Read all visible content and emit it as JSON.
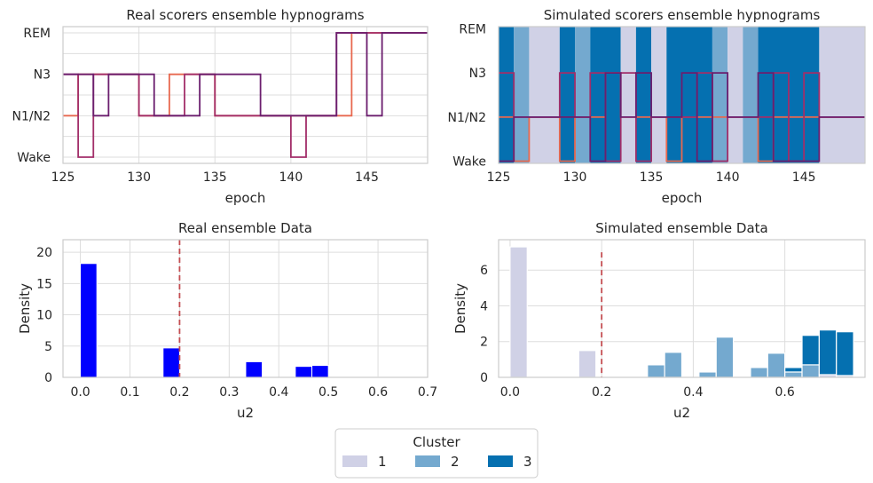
{
  "legend": {
    "title": "Cluster",
    "items": [
      {
        "label": "1",
        "color": "#d0d1e6"
      },
      {
        "label": "2",
        "color": "#74a9cf"
      },
      {
        "label": "3",
        "color": "#0570b0"
      }
    ]
  },
  "chart_data": [
    {
      "id": "real-hyp",
      "type": "line",
      "title": "Real scorers ensemble hypnograms",
      "xlabel": "epoch",
      "ylabel": "",
      "xlim": [
        125,
        149
      ],
      "x_ticks": [
        125,
        130,
        135,
        140,
        145
      ],
      "y_ticks": [
        0,
        1,
        2,
        3
      ],
      "y_tick_labels": [
        "Wake",
        "N1/N2",
        "N3",
        "REM"
      ],
      "ylim": [
        -0.15,
        3.15
      ],
      "grid": true,
      "series": [
        {
          "color": "#e8684f",
          "steps": [
            [
              125,
              1
            ],
            [
              126,
              2
            ],
            [
              127,
              2
            ],
            [
              128,
              2
            ],
            [
              130,
              1
            ],
            [
              132,
              2
            ],
            [
              135,
              1
            ],
            [
              140,
              1
            ],
            [
              141,
              1
            ],
            [
              144,
              3
            ],
            [
              149,
              3
            ]
          ]
        },
        {
          "color": "#a22e69",
          "steps": [
            [
              125,
              2
            ],
            [
              126,
              0
            ],
            [
              127,
              2
            ],
            [
              130,
              1
            ],
            [
              133,
              2
            ],
            [
              135,
              1
            ],
            [
              140,
              0
            ],
            [
              141,
              1
            ],
            [
              143,
              3
            ],
            [
              149,
              3
            ]
          ]
        },
        {
          "color": "#6b1e6e",
          "steps": [
            [
              125,
              2
            ],
            [
              126,
              2
            ],
            [
              127,
              1
            ],
            [
              128,
              2
            ],
            [
              131,
              1
            ],
            [
              134,
              2
            ],
            [
              138,
              1
            ],
            [
              143,
              3
            ],
            [
              145,
              1
            ],
            [
              146,
              3
            ],
            [
              149,
              3
            ]
          ]
        }
      ]
    },
    {
      "id": "sim-hyp",
      "type": "line",
      "title": "Simulated scorers ensemble hypnograms",
      "xlabel": "epoch",
      "ylabel": "",
      "xlim": [
        125,
        149
      ],
      "x_ticks": [
        125,
        130,
        135,
        140,
        145
      ],
      "y_ticks": [
        0,
        1,
        2,
        3
      ],
      "y_tick_labels": [
        "Wake",
        "N1/N2",
        "N3",
        "REM"
      ],
      "ylim": [
        -0.05,
        3.05
      ],
      "grid": false,
      "background_bands": [
        {
          "x0": 125,
          "x1": 126,
          "cluster": 3
        },
        {
          "x0": 126,
          "x1": 127,
          "cluster": 2
        },
        {
          "x0": 127,
          "x1": 129,
          "cluster": 1
        },
        {
          "x0": 129,
          "x1": 130,
          "cluster": 3
        },
        {
          "x0": 130,
          "x1": 131,
          "cluster": 2
        },
        {
          "x0": 131,
          "x1": 133,
          "cluster": 3
        },
        {
          "x0": 133,
          "x1": 134,
          "cluster": 1
        },
        {
          "x0": 134,
          "x1": 135,
          "cluster": 3
        },
        {
          "x0": 135,
          "x1": 136,
          "cluster": 1
        },
        {
          "x0": 136,
          "x1": 139,
          "cluster": 3
        },
        {
          "x0": 139,
          "x1": 140,
          "cluster": 2
        },
        {
          "x0": 140,
          "x1": 141,
          "cluster": 1
        },
        {
          "x0": 141,
          "x1": 142,
          "cluster": 2
        },
        {
          "x0": 142,
          "x1": 146,
          "cluster": 3
        },
        {
          "x0": 146,
          "x1": 149,
          "cluster": 1
        }
      ],
      "series": [
        {
          "color": "#e8684f",
          "steps": [
            [
              125,
              1
            ],
            [
              126,
              0
            ],
            [
              127,
              1
            ],
            [
              129,
              0
            ],
            [
              130,
              1
            ],
            [
              132,
              2
            ],
            [
              133,
              1
            ],
            [
              136,
              0
            ],
            [
              137,
              1
            ],
            [
              139,
              1
            ],
            [
              142,
              0
            ],
            [
              143,
              1
            ],
            [
              146,
              1
            ],
            [
              149,
              1
            ]
          ]
        },
        {
          "color": "#a22e69",
          "steps": [
            [
              125,
              2
            ],
            [
              126,
              1
            ],
            [
              127,
              1
            ],
            [
              129,
              2
            ],
            [
              130,
              1
            ],
            [
              131,
              2
            ],
            [
              132,
              0
            ],
            [
              133,
              2
            ],
            [
              134,
              0
            ],
            [
              135,
              1
            ],
            [
              138,
              2
            ],
            [
              139,
              0
            ],
            [
              140,
              1
            ],
            [
              143,
              2
            ],
            [
              144,
              0
            ],
            [
              145,
              2
            ],
            [
              146,
              1
            ],
            [
              149,
              1
            ]
          ]
        },
        {
          "color": "#6b1e6e",
          "steps": [
            [
              125,
              0
            ],
            [
              126,
              1
            ],
            [
              129,
              1
            ],
            [
              131,
              0
            ],
            [
              132,
              2
            ],
            [
              133,
              1
            ],
            [
              134,
              2
            ],
            [
              135,
              1
            ],
            [
              136,
              1
            ],
            [
              137,
              2
            ],
            [
              138,
              0
            ],
            [
              139,
              2
            ],
            [
              140,
              1
            ],
            [
              142,
              2
            ],
            [
              143,
              0
            ],
            [
              146,
              1
            ],
            [
              149,
              1
            ]
          ]
        }
      ]
    },
    {
      "id": "real-hist",
      "type": "bar",
      "title": "Real ensemble Data",
      "xlabel": "u2",
      "ylabel": "Density",
      "xlim": [
        -0.035,
        0.7
      ],
      "ylim": [
        0,
        22
      ],
      "x_ticks": [
        0.0,
        0.1,
        0.2,
        0.3,
        0.4,
        0.5,
        0.6,
        0.7
      ],
      "x_tick_labels": [
        "0.0",
        "0.1",
        "0.2",
        "0.3",
        "0.4",
        "0.5",
        "0.6",
        "0.7"
      ],
      "y_ticks": [
        0,
        5,
        10,
        15,
        20
      ],
      "y_tick_labels": [
        "0",
        "5",
        "10",
        "15",
        "20"
      ],
      "bin_width": 0.0333,
      "bar_color": "#0000ff",
      "bars": [
        {
          "x": 0.0,
          "value": 18.2
        },
        {
          "x": 0.1667,
          "value": 4.7
        },
        {
          "x": 0.3333,
          "value": 2.5
        },
        {
          "x": 0.4333,
          "value": 1.75
        },
        {
          "x": 0.4667,
          "value": 1.9
        },
        {
          "x": 0.5667,
          "value": 0.05
        },
        {
          "x": 0.6,
          "value": 0.03
        }
      ],
      "vline": {
        "x": 0.2,
        "color": "#c44e52"
      },
      "grid": true
    },
    {
      "id": "sim-hist",
      "type": "bar",
      "title": "Simulated ensemble Data",
      "xlabel": "u2",
      "ylabel": "Density",
      "xlim": [
        -0.025,
        0.775
      ],
      "ylim": [
        0,
        7.7
      ],
      "x_ticks": [
        0.0,
        0.2,
        0.4,
        0.6
      ],
      "x_tick_labels": [
        "0.0",
        "0.2",
        "0.4",
        "0.6"
      ],
      "y_ticks": [
        0,
        2,
        4,
        6
      ],
      "y_tick_labels": [
        "0",
        "2",
        "4",
        "6"
      ],
      "bin_width": 0.0375,
      "stacks": [
        {
          "x": 0.0,
          "segments": [
            [
              1,
              7.3
            ]
          ]
        },
        {
          "x": 0.15,
          "segments": [
            [
              1,
              1.5
            ]
          ]
        },
        {
          "x": 0.3,
          "segments": [
            [
              2,
              0.7
            ]
          ]
        },
        {
          "x": 0.3375,
          "segments": [
            [
              2,
              1.4
            ]
          ]
        },
        {
          "x": 0.4125,
          "segments": [
            [
              2,
              0.3
            ]
          ]
        },
        {
          "x": 0.45,
          "segments": [
            [
              2,
              2.25
            ]
          ]
        },
        {
          "x": 0.525,
          "segments": [
            [
              2,
              0.55
            ]
          ]
        },
        {
          "x": 0.5625,
          "segments": [
            [
              2,
              1.35
            ]
          ]
        },
        {
          "x": 0.6,
          "segments": [
            [
              2,
              0.3
            ],
            [
              3,
              0.25
            ]
          ]
        },
        {
          "x": 0.6375,
          "segments": [
            [
              2,
              0.7
            ],
            [
              3,
              1.65
            ]
          ]
        },
        {
          "x": 0.675,
          "segments": [
            [
              1,
              0.15
            ],
            [
              3,
              2.5
            ]
          ]
        },
        {
          "x": 0.7125,
          "segments": [
            [
              1,
              0.1
            ],
            [
              3,
              2.45
            ]
          ]
        }
      ],
      "vline": {
        "x": 0.2,
        "ymax": 7.0,
        "color": "#c44e52"
      },
      "grid": true
    }
  ]
}
